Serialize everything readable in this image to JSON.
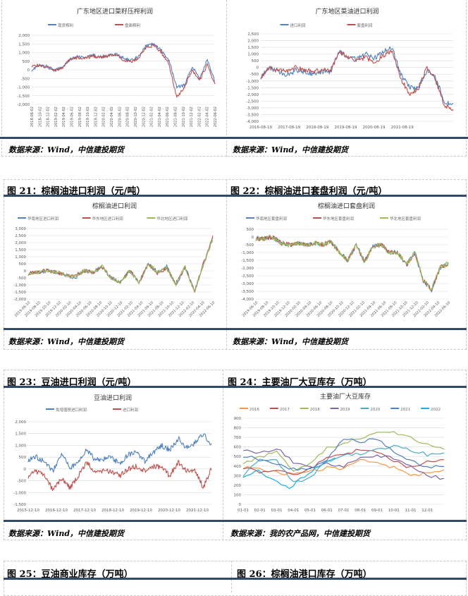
{
  "sections": {
    "top": {
      "source_left": "数据来源：Wind，中信建投期货",
      "source_right": "数据来源：Wind，中信建投期货"
    },
    "s2": {
      "fig_left": "图 21：棕榈油进口利润（元/吨）",
      "fig_right": "图 22：棕榈油进口套盘利润（元/吨）",
      "source_left": "数据来源：Wind，中信建投期货",
      "source_right": "数据来源：Wind，中信建投期货"
    },
    "s3": {
      "fig_left": "图 23：豆油进口利润（元/吨）",
      "fig_right": "图 24：主要油厂大豆库存（万吨）",
      "source_left": "数据来源：Wind，中信建投期货",
      "source_right": "数据来源：我的农产品网，中信建投期货"
    },
    "s4": {
      "fig_left": "图 25：豆油商业库存（万吨）",
      "fig_right": "图 26：棕榈油港口库存（万吨）"
    }
  },
  "colors": {
    "rule": "#2f4a6d",
    "blue": "#4f81bd",
    "red": "#c0504d",
    "green": "#9bbb59"
  },
  "chart_data": [
    {
      "id": "c1",
      "type": "line",
      "title": "广东地区进口菜籽压榨利润",
      "xlabel": "",
      "ylabel": "",
      "ylim": [
        -2000,
        2000
      ],
      "yticks": [
        "2,000",
        "1,500",
        "1,000",
        "500",
        "0",
        "-500",
        "-1,000",
        "-1,500",
        "-2,000"
      ],
      "xrotate": -90,
      "noise": 90,
      "xticks": [
        "2018-08-02",
        "2018-10-02",
        "2018-12-02",
        "2019-02-02",
        "2019-04-02",
        "2019-06-02",
        "2019-08-02",
        "2019-10-02",
        "2019-12-02",
        "2020-02-02",
        "2020-04-02",
        "2020-06-02",
        "2020-08-02",
        "2020-10-02",
        "2020-12-02",
        "2021-02-02",
        "2021-04-02",
        "2021-06-02",
        "2021-08-02",
        "2021-10-02",
        "2021-12-02",
        "2022-02-02",
        "2022-04-02",
        "2022-06-02"
      ],
      "series": [
        {
          "name": "现货榨利",
          "color": "#4f81bd",
          "values": [
            0,
            250,
            200,
            -50,
            150,
            600,
            750,
            700,
            850,
            750,
            850,
            900,
            700,
            550,
            800,
            1400,
            1500,
            1100,
            500,
            -1000,
            -900,
            200,
            -500,
            600,
            -700
          ]
        },
        {
          "name": "盘面榨利",
          "color": "#c0504d",
          "values": [
            250,
            250,
            150,
            0,
            100,
            600,
            700,
            650,
            800,
            700,
            800,
            850,
            600,
            450,
            700,
            1300,
            1400,
            1000,
            300,
            -1600,
            -1000,
            0,
            -600,
            300,
            -900
          ]
        }
      ]
    },
    {
      "id": "c2",
      "type": "line",
      "title": "广东地区菜油进口利润",
      "xlabel": "",
      "ylabel": "",
      "ylim": [
        -4000,
        2500
      ],
      "yticks": [
        "2,500",
        "2,000",
        "1,500",
        "1,000",
        "500",
        "0",
        "-500",
        "-1,000",
        "-1,500",
        "-2,000",
        "-2,500",
        "-3,000",
        "-3,500",
        "-4,000"
      ],
      "xrotate": 0,
      "noise": 180,
      "xspan": 6.8,
      "xticks": [
        "2016-08-19",
        "2017-08-19",
        "2018-08-19",
        "2019-08-19",
        "2020-08-19",
        "2021-08-19"
      ],
      "series": [
        {
          "name": "进口利润",
          "color": "#4f81bd",
          "values": [
            -700,
            0,
            -300,
            -600,
            -200,
            -300,
            -500,
            -300,
            -300,
            1200,
            800,
            600,
            1000,
            700,
            1200,
            1500,
            -500,
            -1500,
            -1500,
            -200,
            -800,
            -2500,
            -2800
          ]
        },
        {
          "name": "套盘利润",
          "color": "#c0504d",
          "values": [
            -700,
            0,
            -200,
            -300,
            0,
            -200,
            -300,
            -200,
            -200,
            1200,
            800,
            500,
            800,
            300,
            900,
            1200,
            -800,
            -2000,
            -1600,
            0,
            -1000,
            -2800,
            -3100
          ]
        }
      ]
    },
    {
      "id": "c21",
      "type": "line",
      "title": "棕榈油进口利润",
      "xlabel": "",
      "ylabel": "",
      "ylim": [
        -2000,
        3000
      ],
      "yticks": [
        "3,000",
        "2,500",
        "2,000",
        "1,500",
        "1,000",
        "500",
        "0",
        "-500",
        "-1,000",
        "-1,500",
        "-2,000"
      ],
      "xrotate": -45,
      "noise": 140,
      "xticks": [
        "2019-06-10",
        "2019-08-10",
        "2019-10-10",
        "2019-12-10",
        "2020-02-10",
        "2020-04-10",
        "2020-06-10",
        "2020-08-10",
        "2020-10-10",
        "2020-12-10",
        "2021-02-10",
        "2021-04-10",
        "2021-06-10",
        "2021-08-10",
        "2021-10-10",
        "2021-12-10",
        "2022-02-10",
        "2022-04-10",
        "2022-06-10"
      ],
      "series": [
        {
          "name": "华南地区进口利润",
          "color": "#4f81bd",
          "values": [
            -200,
            -100,
            0,
            -100,
            -300,
            -500,
            0,
            -100,
            300,
            -500,
            -800,
            0,
            -800,
            500,
            -100,
            300,
            -1000,
            300,
            -1500,
            500,
            2300
          ]
        },
        {
          "name": "华东地区进口利润",
          "color": "#c0504d",
          "values": [
            -200,
            -100,
            50,
            -100,
            -250,
            -400,
            0,
            -100,
            300,
            -500,
            -800,
            0,
            -800,
            450,
            -150,
            200,
            -900,
            250,
            -1400,
            550,
            2400
          ]
        },
        {
          "name": "华北地区进口利润",
          "color": "#9bbb59",
          "values": [
            -200,
            -100,
            0,
            -100,
            -300,
            -400,
            0,
            -100,
            300,
            -500,
            -800,
            0,
            -800,
            500,
            -100,
            200,
            -1000,
            300,
            -1500,
            500,
            2300
          ]
        }
      ]
    },
    {
      "id": "c22",
      "type": "line",
      "title": "棕榈油进口套盘利润",
      "xlabel": "",
      "ylabel": "",
      "ylim": [
        -4000,
        500
      ],
      "yticks": [
        "500",
        "0",
        "-500",
        "-1,000",
        "-1,500",
        "-2,000",
        "-2,500",
        "-3,000",
        "-3,500",
        "-4,000"
      ],
      "xrotate": -45,
      "noise": 150,
      "xticks": [
        "2019-06-10",
        "2019-08-10",
        "2019-10-10",
        "2019-12-10",
        "2020-02-10",
        "2020-04-10",
        "2020-06-10",
        "2020-08-10",
        "2020-10-10",
        "2020-12-10",
        "2021-02-10",
        "2021-04-10",
        "2021-06-10",
        "2021-08-10",
        "2021-10-10",
        "2021-12-10",
        "2022-02-10",
        "2022-04-10",
        "2022-06-10"
      ],
      "series": [
        {
          "name": "华南地区套盘利润",
          "color": "#4f81bd",
          "values": [
            -100,
            -100,
            0,
            -400,
            -500,
            -400,
            -500,
            -400,
            -500,
            -300,
            -1000,
            -1500,
            -500,
            -1600,
            -600,
            -500,
            -1000,
            -1000,
            -1800,
            -1000,
            -2800,
            -3400,
            -2000,
            -1700
          ]
        },
        {
          "name": "华东地区套盘利润",
          "color": "#c0504d",
          "values": [
            -100,
            -100,
            0,
            -400,
            -500,
            -400,
            -500,
            -400,
            -500,
            -300,
            -1000,
            -1500,
            -500,
            -1600,
            -600,
            -500,
            -1000,
            -1000,
            -1800,
            -1000,
            -2800,
            -3400,
            -2000,
            -1700
          ]
        },
        {
          "name": "华北地区套盘利润",
          "color": "#9bbb59",
          "values": [
            -100,
            -100,
            0,
            -400,
            -500,
            -400,
            -500,
            -400,
            -500,
            -300,
            -1000,
            -1500,
            -500,
            -1600,
            -600,
            -500,
            -1000,
            -1000,
            -1800,
            -1000,
            -2800,
            -3400,
            -2000,
            -1700
          ]
        }
      ]
    },
    {
      "id": "c23",
      "type": "line",
      "title": "豆油进口利润",
      "xlabel": "",
      "ylabel": "",
      "ylim": [
        -1500,
        2000
      ],
      "yticks": [
        "2,000",
        "1,500",
        "1,000",
        "500",
        "0",
        "-500",
        "-1,000",
        "-1,500"
      ],
      "xrotate": 0,
      "noise": 110,
      "xspan": 6.5,
      "xticks": [
        "2015-12-10",
        "2016-12-10",
        "2017-12-10",
        "2018-12-10",
        "2019-12-10",
        "2020-12-10",
        "2021-12-10"
      ],
      "series": [
        {
          "name": "免增值税进口利润",
          "color": "#4f81bd",
          "values": [
            400,
            500,
            300,
            -100,
            700,
            0,
            300,
            800,
            400,
            400,
            500,
            200,
            600,
            700,
            300,
            700,
            1000,
            800,
            1300,
            900,
            1100,
            1500,
            1000
          ]
        },
        {
          "name": "进口利润",
          "color": "#c0504d",
          "values": [
            -300,
            -100,
            -300,
            -900,
            -400,
            -800,
            -300,
            300,
            -100,
            -100,
            -100,
            -300,
            0,
            100,
            -100,
            100,
            100,
            -300,
            300,
            -100,
            0,
            -800,
            0
          ]
        }
      ]
    },
    {
      "id": "c24",
      "type": "line",
      "title": "主要油厂大豆库存",
      "xlabel": "",
      "ylabel": "",
      "ylim": [
        0,
        900
      ],
      "yticks": [
        "900",
        "800",
        "700",
        "600",
        "500",
        "400",
        "300",
        "200",
        "100",
        "0"
      ],
      "xrotate": 0,
      "noise": 18,
      "xspan": 12,
      "xticks": [
        "01-01",
        "02-01",
        "03-01",
        "04-01",
        "05-01",
        "06-01",
        "07-01",
        "08-01",
        "09-01",
        "10-01",
        "11-01",
        "12-01"
      ],
      "series": [
        {
          "name": "2016",
          "color": "#f79646",
          "values": [
            390,
            380,
            330,
            310,
            340,
            380,
            370,
            470,
            450,
            380,
            310,
            320,
            350
          ]
        },
        {
          "name": "2017",
          "color": "#c0504d",
          "values": [
            390,
            340,
            350,
            310,
            380,
            480,
            520,
            570,
            560,
            450,
            380,
            460,
            460
          ]
        },
        {
          "name": "2018",
          "color": "#9bbb59",
          "values": [
            440,
            490,
            560,
            350,
            440,
            590,
            640,
            690,
            740,
            750,
            700,
            620,
            570
          ]
        },
        {
          "name": "2019",
          "color": "#8064a2",
          "values": [
            580,
            540,
            590,
            440,
            380,
            430,
            390,
            500,
            510,
            480,
            410,
            300,
            270
          ]
        },
        {
          "name": "2020",
          "color": "#4bacc6",
          "values": [
            310,
            480,
            450,
            220,
            280,
            450,
            520,
            530,
            580,
            610,
            570,
            520,
            540
          ]
        },
        {
          "name": "2021",
          "color": "#4f81bd",
          "values": [
            510,
            470,
            410,
            370,
            380,
            460,
            690,
            660,
            680,
            560,
            450,
            390,
            400
          ]
        },
        {
          "name": "2022",
          "color": "#1cade4",
          "values": [
            300,
            350,
            260,
            160,
            300,
            400,
            500
          ],
          "xspan": 5.5
        }
      ]
    }
  ]
}
